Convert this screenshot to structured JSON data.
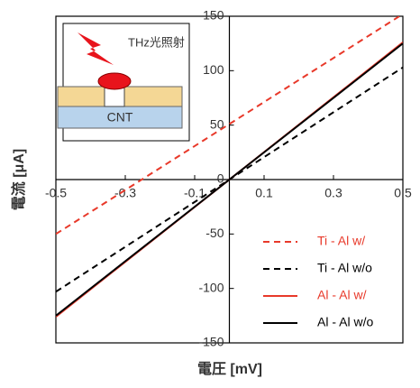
{
  "chart_data": {
    "type": "line",
    "xlabel": "電圧 [mV]",
    "ylabel": "電流 [μA]",
    "annotations": [
      "THz光照射",
      "CNT"
    ],
    "x": [
      -0.5,
      0.5
    ],
    "series": [
      {
        "name": "Ti - Al w/",
        "color": "#e8392a",
        "dash": true,
        "values": [
          -50,
          152
        ]
      },
      {
        "name": "Ti - Al w/o",
        "color": "#000000",
        "dash": true,
        "values": [
          -103,
          103
        ]
      },
      {
        "name": "Al - Al w/",
        "color": "#e8392a",
        "dash": false,
        "values": [
          -126,
          126
        ]
      },
      {
        "name": "Al - Al w/o",
        "color": "#000000",
        "dash": false,
        "values": [
          -125,
          125
        ]
      }
    ],
    "xlim": [
      -0.5,
      0.5
    ],
    "xticks": [
      -0.5,
      -0.3,
      -0.1,
      0.1,
      0.3,
      0.5
    ],
    "ylim": [
      -150,
      150
    ],
    "yticks": [
      -150,
      -100,
      -50,
      0,
      50,
      100,
      150
    ],
    "legend": "lower right"
  }
}
